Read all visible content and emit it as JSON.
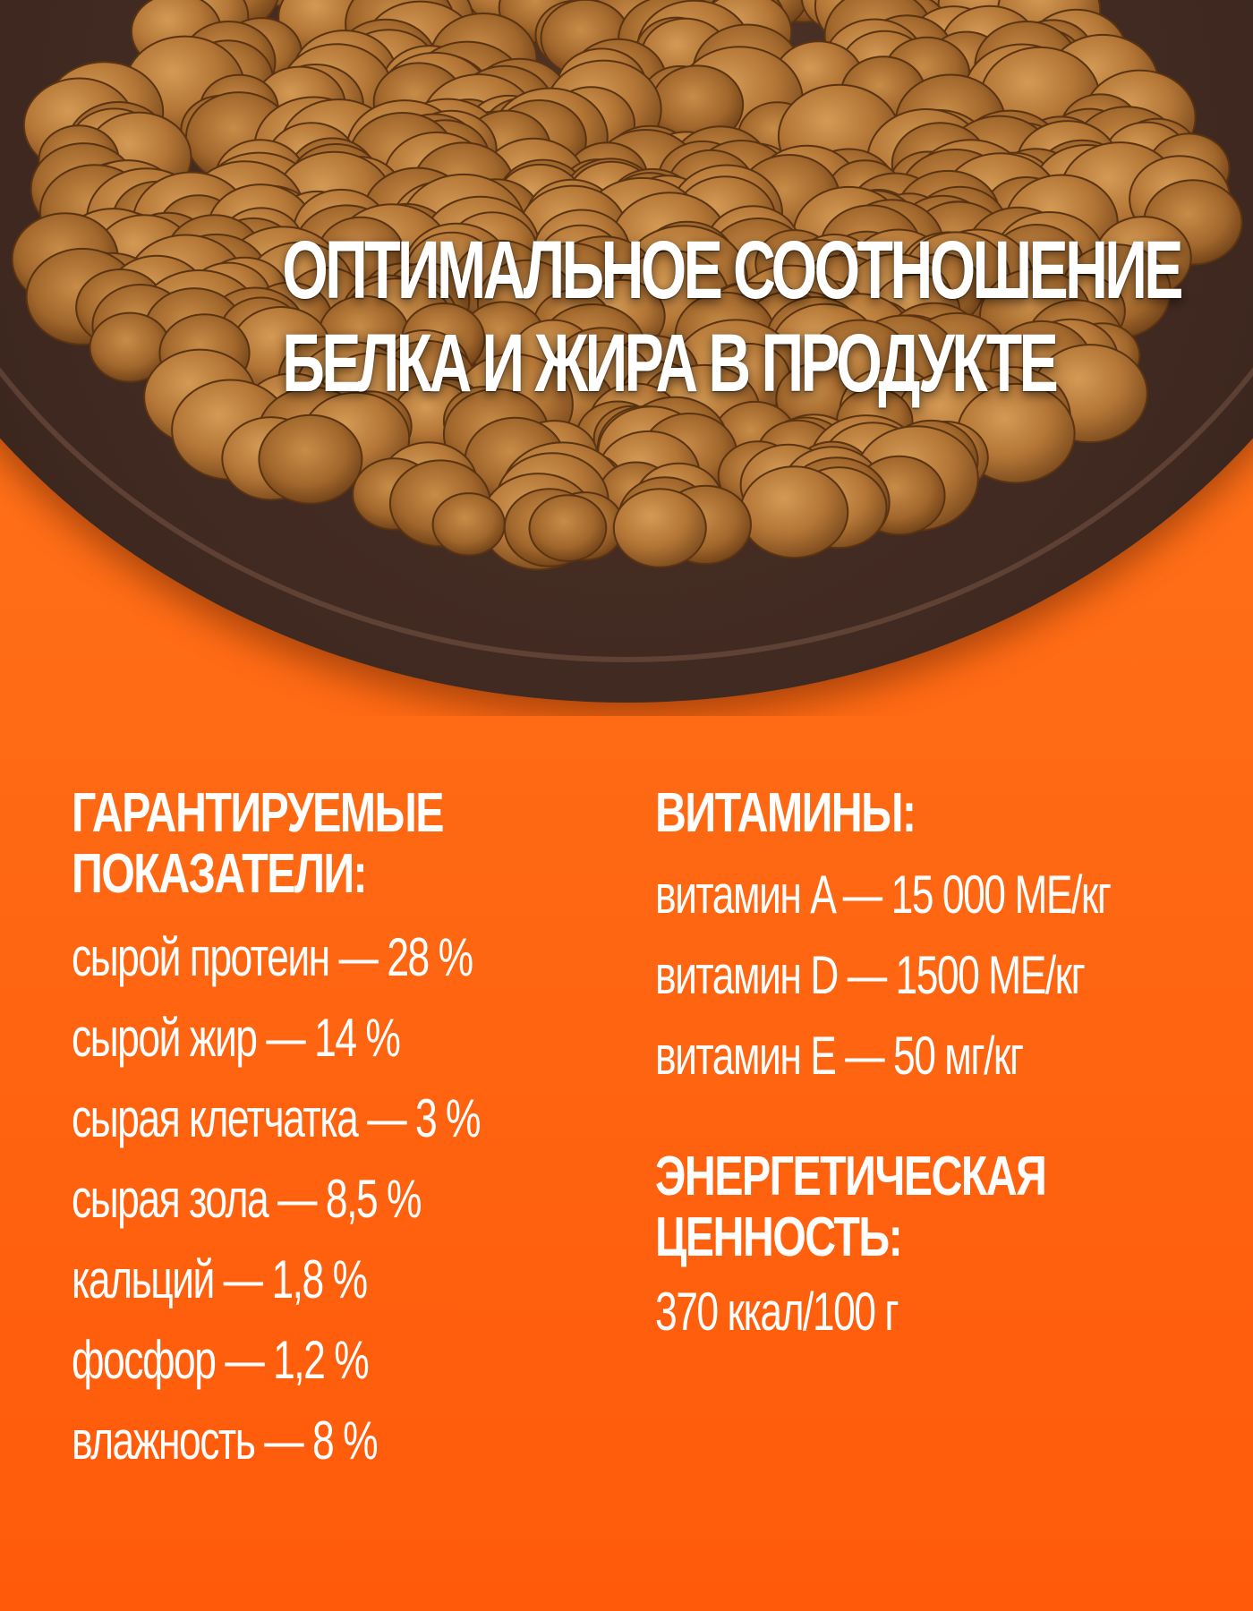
{
  "hero": {
    "title_line1": "ОПТИМАЛЬНОЕ СООТНОШЕНИЕ",
    "title_line2": "БЕЛКА И ЖИРА В ПРОДУКТЕ"
  },
  "guaranteed": {
    "heading_line1": "ГАРАНТИРУЕМЫЕ",
    "heading_line2": "ПОКАЗАТЕЛИ:",
    "items": [
      "сырой протеин — 28 %",
      "сырой жир — 14 %",
      "сырая клетчатка — 3 %",
      "сырая зола — 8,5 %",
      "кальций — 1,8 %",
      "фосфор — 1,2 %",
      "влажность — 8 %"
    ]
  },
  "vitamins": {
    "heading": "ВИТАМИНЫ:",
    "items": [
      "витамин A — 15 000 МЕ/кг",
      "витамин D — 1500 МЕ/кг",
      "витамин E — 50 мг/кг"
    ]
  },
  "energy": {
    "heading_line1": "ЭНЕРГЕТИЧЕСКАЯ",
    "heading_line2": "ЦЕННОСТЬ:",
    "value": "370 ккал/100 г"
  },
  "colors": {
    "background_top": "#ff7a1f",
    "background_bottom": "#ff5a0a",
    "bowl": "#3e2820",
    "kibble": "#b87a3a",
    "text": "#ffffff"
  }
}
